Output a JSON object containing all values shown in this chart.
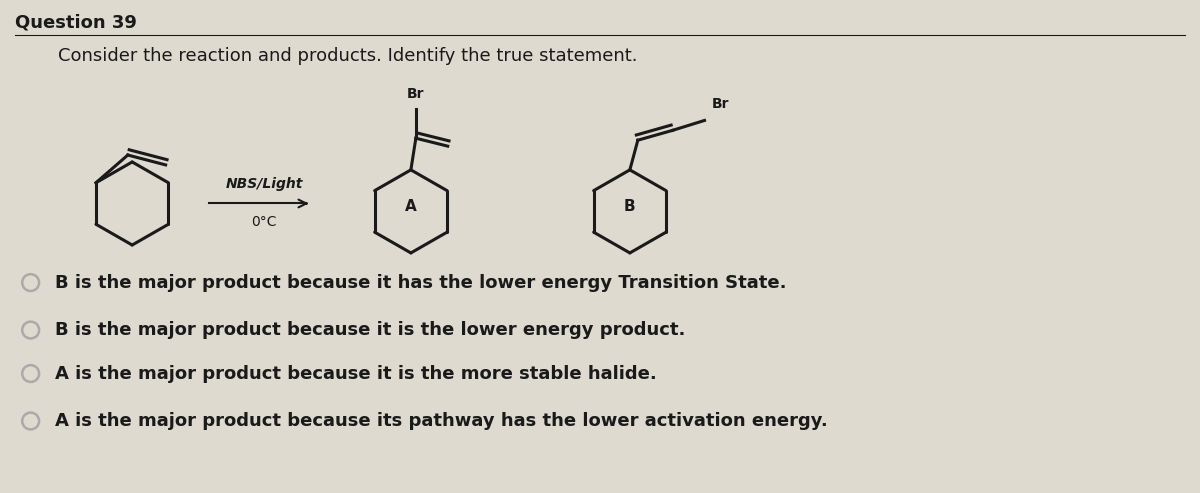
{
  "title": "Question 39",
  "subtitle": "Consider the reaction and products. Identify the true statement.",
  "reagent": "NBS/Light",
  "condition": "0°C",
  "label_A": "A",
  "label_B": "B",
  "options": [
    "B is the major product because it has the lower energy Transition State.",
    "B is the major product because it is the lower energy product.",
    "A is the major product because it is the more stable halide.",
    "A is the major product because its pathway has the lower activation energy."
  ],
  "bg_color": "#dedad0",
  "text_color": "#1a1a1a",
  "radio_color": "#aaaaaa",
  "title_fontsize": 13,
  "subtitle_fontsize": 13,
  "option_fontsize": 13,
  "struct_lw": 2.2
}
